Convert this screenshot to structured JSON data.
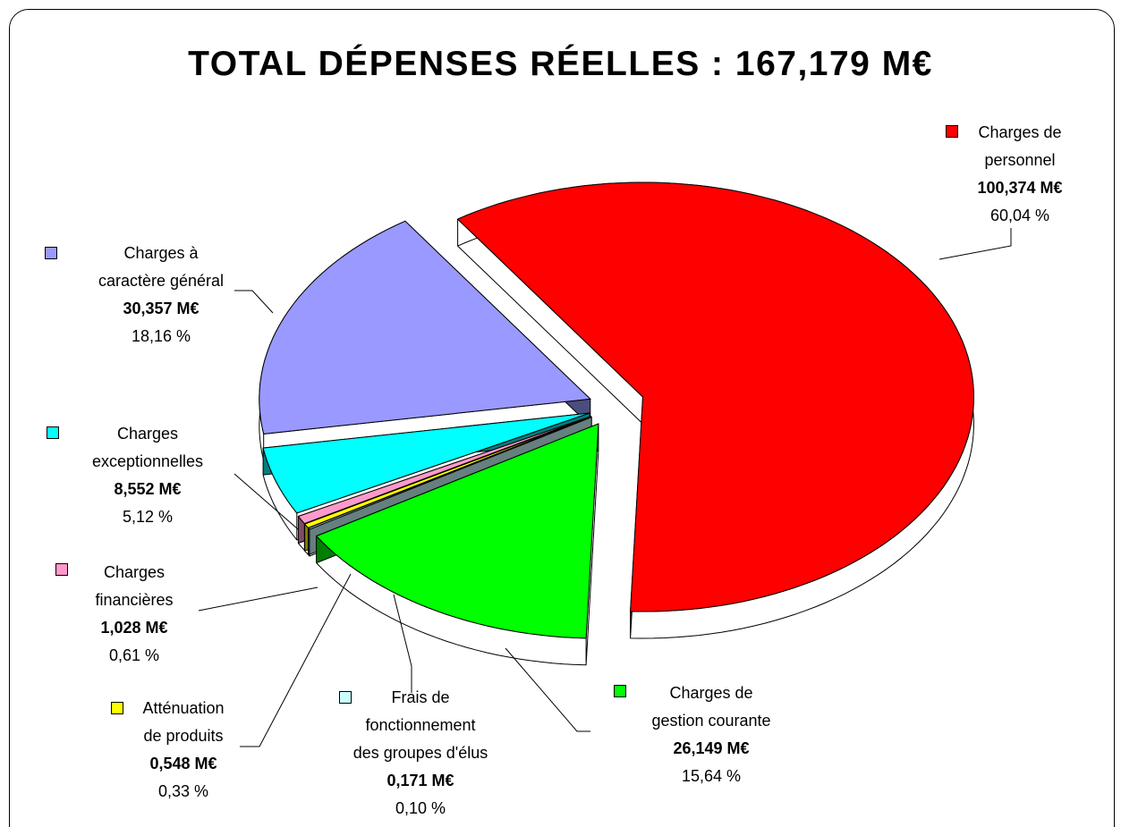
{
  "chart_data": {
    "type": "pie3d",
    "title": "TOTAL DÉPENSES RÉELLES : 167,179 M€",
    "categories": [
      "Charges de\npersonnel",
      "Charges de\ngestion courante",
      "Frais de\nfonctionnement\ndes groupes d'élus",
      "Atténuation\nde produits",
      "Charges\nfinancières",
      "Charges\nexceptionnelles",
      "Charges à\ncaractère général"
    ],
    "values": [
      100.374,
      26.149,
      0.171,
      0.548,
      1.028,
      8.552,
      30.357
    ],
    "value_labels": [
      "100,374 M€",
      "26,149 M€",
      "0,171 M€",
      "0,548 M€",
      "1,028 M€",
      "8,552 M€",
      "30,357 M€"
    ],
    "percentages": [
      60.04,
      15.64,
      0.1,
      0.33,
      0.61,
      5.12,
      18.16
    ],
    "percentage_labels": [
      "60,04 %",
      "15,64 %",
      "0,10 %",
      "0,33 %",
      "0,61 %",
      "5,12 %",
      "18,16 %"
    ],
    "colors": [
      "#ff0000",
      "#00ff00",
      "#ccffff",
      "#ffff00",
      "#ff99cc",
      "#00ffff",
      "#9999ff"
    ]
  }
}
